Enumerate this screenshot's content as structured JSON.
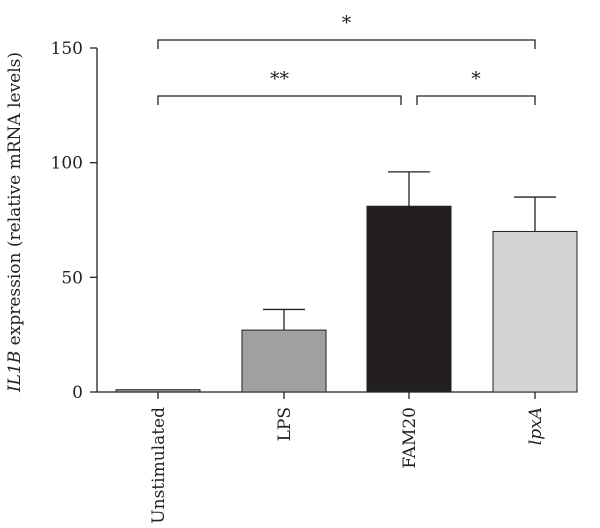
{
  "chart_data": {
    "type": "bar",
    "categories": [
      "Unstimulated",
      "LPS",
      "FAM20",
      "lpxA"
    ],
    "category_italic": [
      false,
      false,
      false,
      true
    ],
    "values": [
      1,
      27,
      81,
      70
    ],
    "errors": [
      0,
      9,
      15,
      15
    ],
    "colors": [
      "#9c9c9c",
      "#a0a0a2",
      "#231f20",
      "#d4d4d4"
    ],
    "ylabel_gene": "IL1B",
    "ylabel_rest": " expression (relative mRNA levels)",
    "ylim": [
      0,
      150
    ],
    "yticks": [
      0,
      50,
      100,
      150
    ],
    "grid": false,
    "significance": [
      {
        "from": 0,
        "to": 3,
        "label": "*"
      },
      {
        "from": 0,
        "to": 2,
        "label": "**"
      },
      {
        "from": 2,
        "to": 3,
        "label": "*"
      }
    ]
  }
}
